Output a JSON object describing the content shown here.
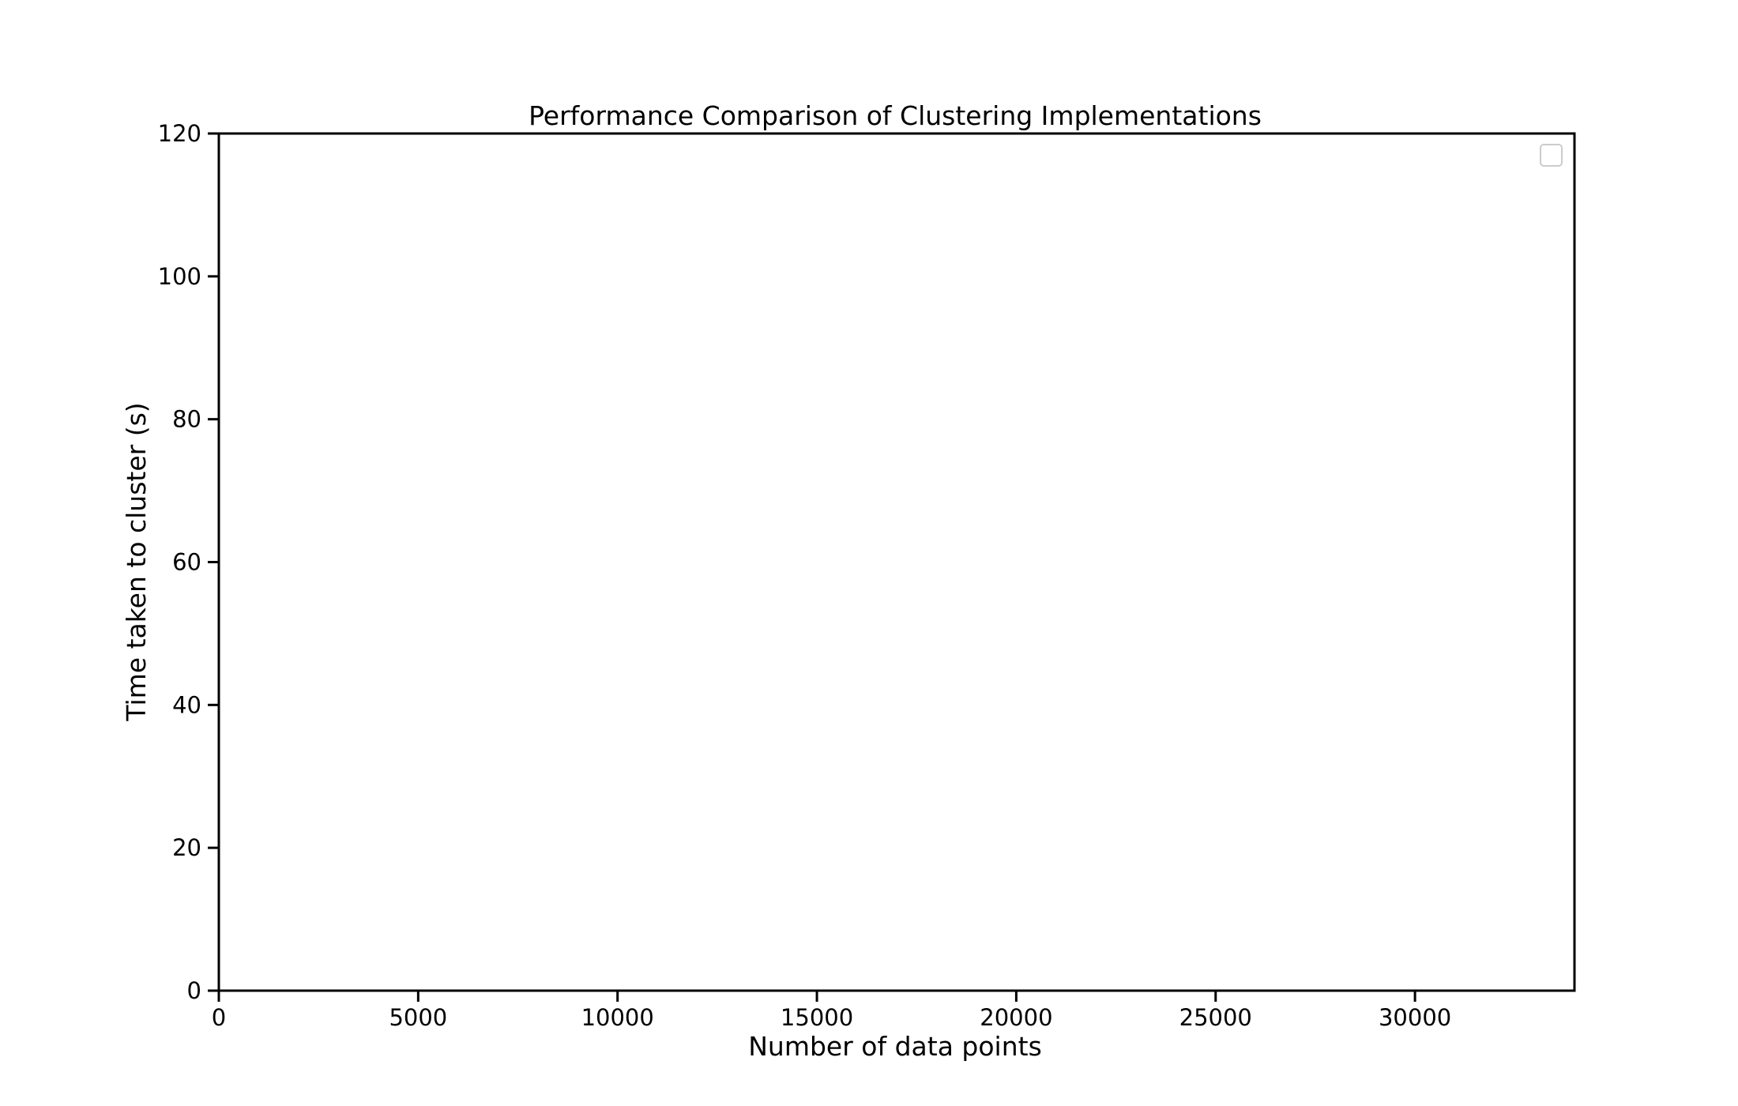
{
  "chart_data": {
    "type": "line",
    "title": "Performance Comparison of Clustering Implementations",
    "xlabel": "Number of data points",
    "ylabel": "Time taken to cluster (s)",
    "xlim": [
      0,
      34000
    ],
    "ylim": [
      0,
      120
    ],
    "xticks": [
      0,
      5000,
      10000,
      15000,
      20000,
      25000,
      30000
    ],
    "yticks": [
      0,
      20,
      40,
      60,
      80,
      100,
      120
    ],
    "grid": false,
    "legend": {
      "placement": "top-right",
      "entries": []
    },
    "series": []
  },
  "colors": {
    "axis": "#000000",
    "legend_border": "#cccccc",
    "background": "#ffffff"
  }
}
